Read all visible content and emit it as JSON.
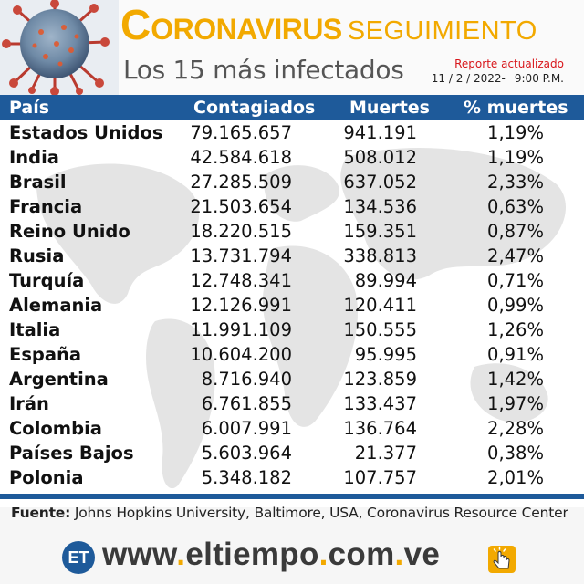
{
  "header": {
    "title_first_letter": "C",
    "title_rest": "ORONAVIRUS",
    "title_tail": "SEGUIMIENTO",
    "subtitle": "Los 15 más infectados",
    "report_label": "Reporte actualizado",
    "report_date": "11 / 2 / 2022-",
    "report_time": "9:00 P.M."
  },
  "table": {
    "columns": [
      "País",
      "Contagiados",
      "Muertes",
      "% muertes"
    ],
    "rows": [
      {
        "pais": "Estados Unidos",
        "contagiados": "79.165.657",
        "muertes": "941.191",
        "pct": "1,19%"
      },
      {
        "pais": "India",
        "contagiados": "42.584.618",
        "muertes": "508.012",
        "pct": "1,19%"
      },
      {
        "pais": "Brasil",
        "contagiados": "27.285.509",
        "muertes": "637.052",
        "pct": "2,33%"
      },
      {
        "pais": "Francia",
        "contagiados": "21.503.654",
        "muertes": "134.536",
        "pct": "0,63%"
      },
      {
        "pais": "Reino Unido",
        "contagiados": "18.220.515",
        "muertes": "159.351",
        "pct": "0,87%"
      },
      {
        "pais": "Rusia",
        "contagiados": "13.731.794",
        "muertes": "338.813",
        "pct": "2,47%"
      },
      {
        "pais": "Turquía",
        "contagiados": "12.748.341",
        "muertes": "89.994",
        "pct": "0,71%"
      },
      {
        "pais": "Alemania",
        "contagiados": "12.126.991",
        "muertes": "120.411",
        "pct": "0,99%"
      },
      {
        "pais": "Italia",
        "contagiados": "11.991.109",
        "muertes": "150.555",
        "pct": "1,26%"
      },
      {
        "pais": "España",
        "contagiados": "10.604.200",
        "muertes": "95.995",
        "pct": "0,91%"
      },
      {
        "pais": "Argentina",
        "contagiados": "8.716.940",
        "muertes": "123.859",
        "pct": "1,42%"
      },
      {
        "pais": "Irán",
        "contagiados": "6.761.855",
        "muertes": "133.437",
        "pct": "1,97%"
      },
      {
        "pais": "Colombia",
        "contagiados": "6.007.991",
        "muertes": "136.764",
        "pct": "2,28%"
      },
      {
        "pais": "Países Bajos",
        "contagiados": "5.603.964",
        "muertes": "21.377",
        "pct": "0,38%"
      },
      {
        "pais": "Polonia",
        "contagiados": "5.348.182",
        "muertes": "107.757",
        "pct": "2,01%"
      }
    ]
  },
  "source": {
    "label": "Fuente:",
    "text": " Johns Hopkins University, Baltimore, USA, Coronavirus Resource Center"
  },
  "footer": {
    "logo_text": "ET",
    "url_www": "www",
    "url_dot1": ".",
    "url_mid": "eltiempo",
    "url_dot2": ".",
    "url_com": "com",
    "url_dot3": ".",
    "url_ve": "ve",
    "icons": [
      "coronavirus-icon",
      "world-map-icon",
      "click-hand-icon"
    ]
  },
  "colors": {
    "accent": "#f2a900",
    "header_blue": "#1e5a9a",
    "report_red": "#d8161b"
  }
}
